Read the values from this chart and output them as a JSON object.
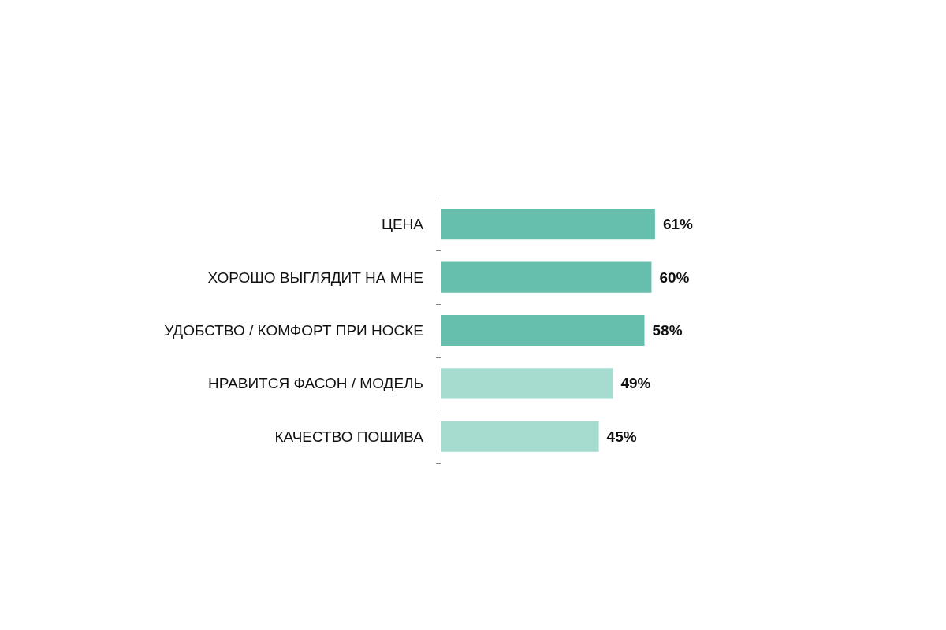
{
  "chart_data": {
    "type": "bar",
    "orientation": "horizontal",
    "categories": [
      "ЦЕНА",
      "ХОРОШО ВЫГЛЯДИТ НА МНЕ",
      "УДОБСТВО / КОМФОРТ ПРИ НОСКЕ",
      "НРАВИТСЯ ФАСОН / МОДЕЛЬ",
      "КАЧЕСТВО ПОШИВА"
    ],
    "values": [
      61,
      60,
      58,
      49,
      45
    ],
    "colors": [
      "#66bfad",
      "#66bfad",
      "#66bfad",
      "#a6dbcf",
      "#a6dbcf"
    ],
    "value_labels": [
      "61%",
      "60%",
      "58%",
      "49%",
      "45%"
    ]
  }
}
